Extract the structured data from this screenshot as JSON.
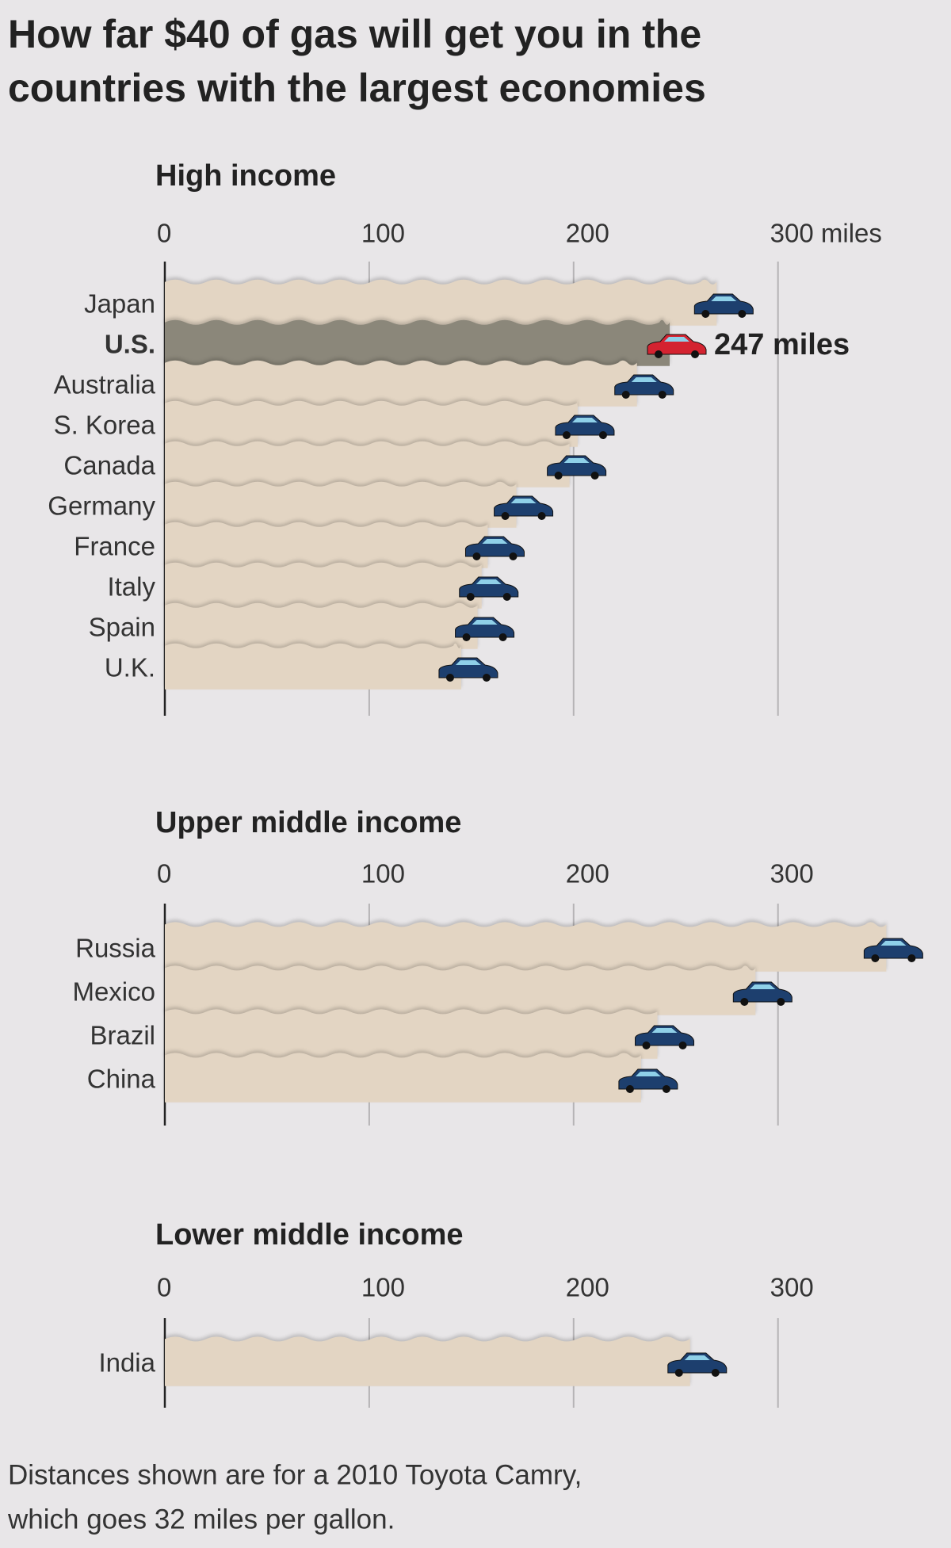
{
  "title": [
    "How far $40 of gas will get you in the",
    "countries with the largest economies"
  ],
  "note": [
    "Distances shown are for a 2010 Toyota Camry,",
    "which goes 32 miles per gallon."
  ],
  "chart_data": [
    {
      "type": "bar",
      "title": "High income",
      "categories": [
        "Japan",
        "U.S.",
        "Australia",
        "S. Korea",
        "Canada",
        "Germany",
        "France",
        "Italy",
        "Spain",
        "U.K."
      ],
      "values": [
        270,
        247,
        231,
        202,
        198,
        172,
        158,
        155,
        153,
        145
      ],
      "value_labels": [
        null,
        "247 miles",
        null,
        null,
        null,
        null,
        null,
        null,
        null,
        null
      ],
      "color": "#e3d5c3",
      "car_color": "#1d3f6e",
      "highlight_index": 1,
      "highlight_color": "#8b877a",
      "highlight_car_color": "#d42330",
      "xlim": [
        0,
        380
      ],
      "xticks": [
        0,
        100,
        200,
        {
          "value": 300,
          "label": "300 miles"
        }
      ],
      "grid": true
    },
    {
      "type": "bar",
      "title": "Upper middle income",
      "categories": [
        "Russia",
        "Mexico",
        "Brazil",
        "China"
      ],
      "values": [
        353,
        289,
        241,
        233
      ],
      "color": "#e3d5c3",
      "car_color": "#1d3f6e",
      "xlim": [
        0,
        380
      ],
      "xticks": [
        0,
        100,
        200,
        300
      ],
      "grid": true
    },
    {
      "type": "bar",
      "title": "Lower middle income",
      "categories": [
        "India"
      ],
      "values": [
        257
      ],
      "color": "#e3d5c3",
      "car_color": "#1d3f6e",
      "xlim": [
        0,
        380
      ],
      "xticks": [
        0,
        100,
        200,
        300
      ],
      "grid": true
    }
  ]
}
